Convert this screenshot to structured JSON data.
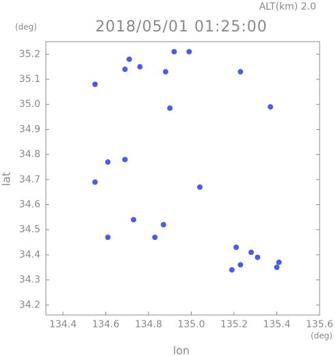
{
  "chart_data": {
    "type": "scatter",
    "title": "2018/05/01 01:25:00",
    "subtitle": "ALT(km) 2.0",
    "y_unit": "(deg)",
    "x_unit": "(deg)",
    "y_label": "lat",
    "x_label": "lon",
    "color": "#4b5ce6",
    "x": [
      134.55,
      134.71,
      134.69,
      134.76,
      134.88,
      134.92,
      134.99,
      135.23,
      135.37,
      134.9,
      134.61,
      134.69,
      134.55,
      135.04,
      134.73,
      134.61,
      134.83,
      134.87,
      135.21,
      135.28,
      135.31,
      135.19,
      135.23,
      135.4,
      135.41
    ],
    "values": [
      35.08,
      35.18,
      35.14,
      35.15,
      35.13,
      35.21,
      35.21,
      35.13,
      34.99,
      34.985,
      34.77,
      34.78,
      34.69,
      34.67,
      34.54,
      34.47,
      34.47,
      34.52,
      34.43,
      34.41,
      34.39,
      34.34,
      34.36,
      34.35,
      34.37
    ],
    "xlim": [
      134.32,
      135.6
    ],
    "ylim": [
      34.16,
      35.25
    ],
    "xticks": [
      134.4,
      134.6,
      134.8,
      {
        "value": 135,
        "label": "135.0"
      },
      135.2,
      135.4,
      135.6
    ],
    "yticks": [
      34.2,
      34.3,
      34.4,
      34.5,
      34.6,
      34.7,
      34.8,
      34.9,
      {
        "value": 35,
        "label": "35.0"
      },
      35.1,
      35.2
    ]
  }
}
